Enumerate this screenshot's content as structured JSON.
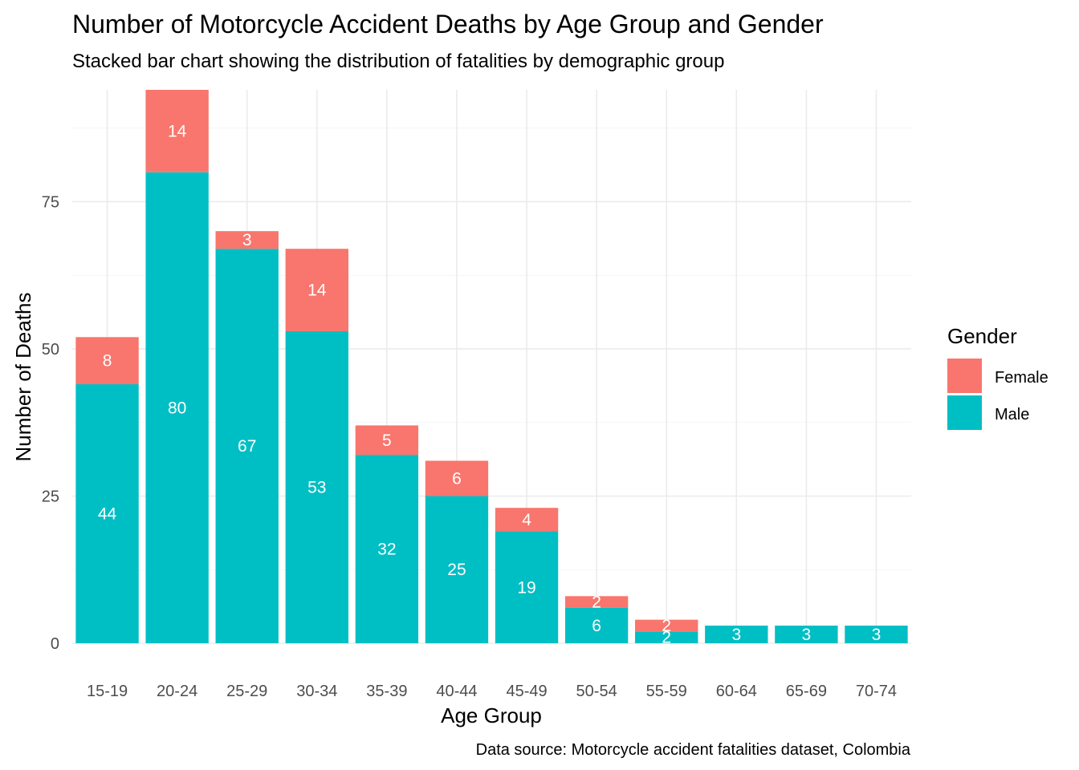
{
  "chart_data": {
    "type": "bar",
    "stacked": true,
    "title": "Number of Motorcycle Accident Deaths by Age Group and Gender",
    "subtitle": "Stacked bar chart showing the distribution of fatalities by demographic group",
    "xlabel": "Age Group",
    "ylabel": "Number of Deaths",
    "caption": "Data source: Motorcycle accident fatalities dataset, Colombia",
    "categories": [
      "15-19",
      "20-24",
      "25-29",
      "30-34",
      "35-39",
      "40-44",
      "45-49",
      "50-54",
      "55-59",
      "60-64",
      "65-69",
      "70-74"
    ],
    "series": [
      {
        "name": "Female",
        "color": "#F8766D",
        "values": [
          8,
          14,
          3,
          14,
          5,
          6,
          4,
          2,
          2,
          0,
          0,
          0
        ]
      },
      {
        "name": "Male",
        "color": "#00BFC4",
        "values": [
          44,
          80,
          67,
          53,
          32,
          25,
          19,
          6,
          2,
          3,
          3,
          3
        ]
      }
    ],
    "stack_order_bottom_to_top": [
      "Male",
      "Female"
    ],
    "ylim": [
      0,
      94
    ],
    "yticks": [
      0,
      25,
      50,
      75
    ],
    "yticks_minor": [
      12.5,
      37.5,
      62.5,
      87.5
    ],
    "grid": true,
    "legend": {
      "title": "Gender",
      "position": "right",
      "entries": [
        "Female",
        "Male"
      ]
    },
    "data_labels": true
  }
}
